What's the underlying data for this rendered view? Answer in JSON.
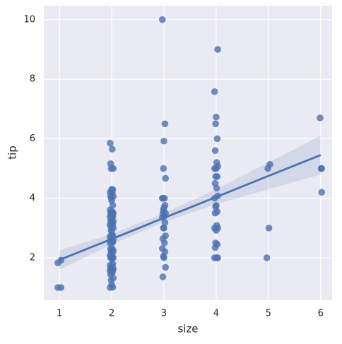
{
  "chart_data": {
    "type": "scatter",
    "xlabel": "size",
    "ylabel": "tip",
    "xlim": [
      0.7,
      6.22
    ],
    "ylim": [
      0.575,
      10.47
    ],
    "xticks": [
      1,
      2,
      3,
      4,
      5,
      6
    ],
    "yticks": [
      2,
      4,
      6,
      8,
      10
    ],
    "grid": true,
    "series": [
      {
        "color": "#4c72b0",
        "x": [
          0.97,
          1.03,
          0.97,
          1.03,
          1.97,
          2.02,
          2.0,
          1.99,
          2.03,
          1.98,
          2.01,
          1.97,
          2.02,
          2.0,
          1.99,
          2.03,
          1.98,
          2.01,
          1.97,
          2.02,
          2.0,
          1.99,
          2.03,
          1.98,
          2.01,
          1.97,
          2.02,
          2.0,
          1.99,
          2.03,
          1.98,
          2.01,
          1.97,
          2.02,
          2.0,
          1.99,
          2.03,
          1.98,
          2.01,
          1.97,
          2.02,
          2.0,
          1.99,
          2.03,
          1.98,
          2.01,
          1.97,
          2.02,
          2.0,
          1.99,
          2.03,
          1.98,
          2.01,
          1.97,
          2.02,
          2.0,
          1.99,
          2.03,
          1.98,
          2.01,
          1.97,
          2.02,
          2.0,
          1.99,
          2.03,
          1.98,
          2.01,
          1.97,
          2.02,
          2.0,
          1.99,
          2.03,
          1.98,
          2.01,
          1.97,
          2.97,
          3.02,
          3.0,
          2.99,
          3.03,
          2.98,
          3.01,
          2.97,
          3.02,
          3.0,
          2.99,
          3.03,
          2.98,
          3.01,
          2.97,
          3.02,
          3.0,
          2.99,
          3.03,
          2.98,
          3.01,
          2.97,
          3.02,
          3.0,
          2.99,
          3.03,
          2.98,
          4.03,
          3.97,
          4.0,
          3.99,
          4.02,
          3.98,
          4.01,
          4.03,
          3.97,
          4.0,
          3.99,
          4.02,
          3.98,
          4.01,
          4.03,
          3.97,
          4.0,
          3.99,
          4.02,
          3.98,
          4.01,
          4.03,
          3.97,
          4.0,
          3.99,
          4.02,
          3.98,
          4.01,
          4.03,
          3.97,
          5.03,
          4.99,
          5.01,
          4.97,
          5.99,
          6.02,
          6.01,
          6.02
        ],
        "y": [
          1.0,
          1.0,
          1.83,
          1.92,
          1.0,
          1.01,
          1.1,
          1.25,
          1.32,
          1.44,
          1.5,
          1.56,
          1.57,
          1.58,
          1.61,
          1.63,
          1.66,
          1.71,
          1.75,
          1.8,
          1.96,
          2.0,
          2.0,
          2.01,
          2.03,
          2.09,
          2.18,
          2.2,
          2.23,
          2.24,
          2.3,
          2.31,
          2.5,
          2.52,
          2.54,
          2.55,
          2.6,
          2.64,
          2.71,
          2.72,
          2.75,
          2.88,
          2.92,
          3.0,
          3.06,
          3.08,
          3.12,
          3.15,
          3.18,
          3.21,
          3.23,
          3.27,
          3.35,
          3.39,
          3.4,
          3.41,
          3.48,
          3.5,
          3.51,
          3.55,
          3.61,
          3.76,
          3.92,
          4.0,
          4.06,
          4.08,
          4.19,
          4.2,
          4.29,
          4.3,
          5.0,
          5.0,
          5.16,
          5.65,
          5.85,
          10.0,
          6.5,
          5.92,
          5.0,
          4.67,
          4.0,
          4.0,
          4.0,
          3.76,
          3.68,
          3.6,
          3.5,
          3.48,
          3.4,
          3.35,
          3.18,
          3.0,
          3.0,
          2.74,
          2.64,
          2.5,
          2.31,
          2.2,
          2.0,
          2.05,
          1.68,
          1.36,
          9.0,
          7.58,
          6.73,
          6.5,
          6.0,
          5.6,
          5.2,
          5.07,
          5.0,
          5.0,
          4.73,
          4.73,
          4.5,
          4.34,
          4.08,
          4.0,
          3.76,
          3.71,
          3.55,
          3.5,
          3.09,
          3.0,
          3.0,
          2.92,
          2.5,
          2.45,
          2.34,
          2.0,
          2.0,
          2.0,
          5.14,
          5.0,
          3.0,
          2.0,
          6.7,
          5.0,
          5.0,
          4.2
        ]
      }
    ],
    "regression": {
      "x": [
        1,
        2,
        3,
        4,
        5,
        6
      ],
      "y": [
        1.93,
        2.63,
        3.34,
        4.04,
        4.75,
        5.45
      ],
      "lower": [
        1.6,
        2.45,
        3.2,
        3.8,
        4.3,
        4.8
      ],
      "upper": [
        2.25,
        2.8,
        3.5,
        4.3,
        5.2,
        6.1
      ]
    }
  }
}
